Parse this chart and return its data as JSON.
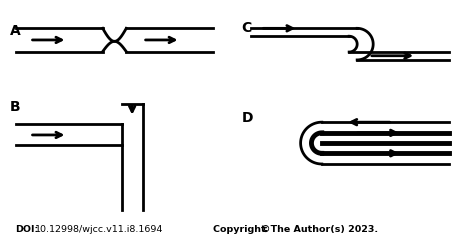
{
  "fig_width": 4.74,
  "fig_height": 2.49,
  "dpi": 100,
  "bg_color": "#ffffff",
  "line_color": "#000000",
  "lw": 2.0,
  "lw_thick": 3.5,
  "label_A": "A",
  "label_B": "B",
  "label_C": "C",
  "label_D": "D",
  "doi_bold": "DOI:",
  "doi_normal": " 10.12998/wjcc.v11.i8.1694",
  "copyright_bold": "Copyright ",
  "copyright_normal": "©The Author(s) 2023."
}
